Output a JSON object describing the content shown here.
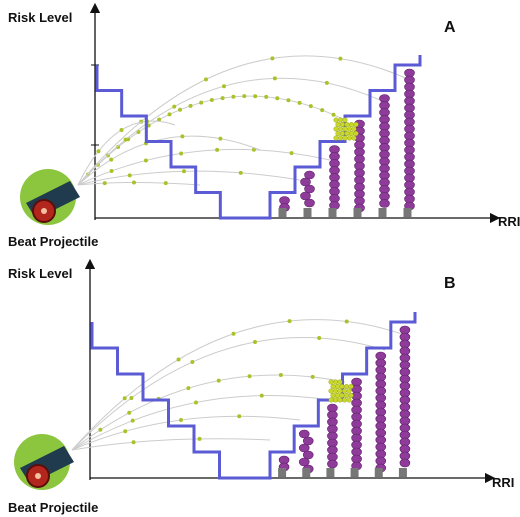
{
  "panels": [
    {
      "y_axis_label": "Risk Level",
      "panel_label": "A",
      "x_axis_label": "RRI",
      "cannon_label": "Beat Projectile"
    },
    {
      "y_axis_label": "Risk Level",
      "panel_label": "B",
      "x_axis_label": "RRI",
      "cannon_label": "Beat Projectile"
    }
  ]
}
